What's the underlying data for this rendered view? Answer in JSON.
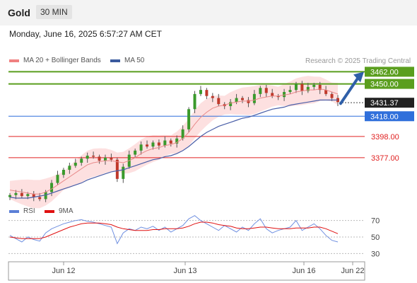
{
  "header": {
    "title": "Gold",
    "timeframe": "30 MIN"
  },
  "datetime": "Monday, June 16, 2025 6:57:27 AM CET",
  "legend": {
    "bollinger": {
      "label": "MA 20 + Bollinger Bands",
      "color": "#f08080"
    },
    "ma50": {
      "label": "MA 50",
      "color": "#3a5a9e"
    },
    "credit": "Research © 2025 Trading Central"
  },
  "rsi_legend": {
    "rsi": {
      "label": "RSI",
      "color": "#5b7fd6"
    },
    "ma9": {
      "label": "9MA",
      "color": "#e01010"
    }
  },
  "chart_data": [
    {
      "type": "line",
      "title": "",
      "x_ticks": [
        "Jun 12",
        "Jun 13",
        "Jun 16",
        "Jun 22"
      ],
      "y_range": [
        3330,
        3470
      ],
      "series": [
        {
          "name": "Gold",
          "values": [
            3340,
            3342,
            3339,
            3341,
            3338,
            3336,
            3343,
            3352,
            3360,
            3365,
            3369,
            3372,
            3376,
            3379,
            3378,
            3374,
            3377,
            3375,
            3356,
            3368,
            3380,
            3384,
            3390,
            3388,
            3392,
            3389,
            3394,
            3391,
            3396,
            3405,
            3425,
            3440,
            3444,
            3438,
            3436,
            3430,
            3428,
            3432,
            3436,
            3434,
            3431,
            3440,
            3446,
            3441,
            3438,
            3437,
            3442,
            3444,
            3450,
            3443,
            3447,
            3449,
            3444,
            3440,
            3436,
            3432
          ]
        },
        {
          "name": "MA 20",
          "values": [
            3345,
            3344,
            3343,
            3342,
            3341,
            3341,
            3343,
            3346,
            3350,
            3354,
            3358,
            3362,
            3366,
            3370,
            3372,
            3373,
            3374,
            3374,
            3373,
            3372,
            3374,
            3377,
            3381,
            3384,
            3386,
            3387,
            3389,
            3390,
            3392,
            3396,
            3402,
            3410,
            3417,
            3422,
            3426,
            3428,
            3429,
            3431,
            3432,
            3433,
            3433,
            3434,
            3436,
            3437,
            3438,
            3438,
            3439,
            3440,
            3442,
            3443,
            3444,
            3444,
            3445,
            3444,
            3442,
            3440
          ]
        },
        {
          "name": "MA 50",
          "values": [
            3338,
            3337,
            3337,
            3337,
            3338,
            3339,
            3340,
            3342,
            3344,
            3346,
            3348,
            3350,
            3352,
            3355,
            3357,
            3359,
            3361,
            3363,
            3364,
            3365,
            3367,
            3369,
            3371,
            3373,
            3375,
            3376,
            3378,
            3379,
            3381,
            3384,
            3388,
            3393,
            3398,
            3402,
            3405,
            3408,
            3410,
            3412,
            3414,
            3416,
            3417,
            3419,
            3421,
            3423,
            3425,
            3426,
            3427,
            3429,
            3430,
            3431,
            3432,
            3433,
            3434,
            3434,
            3434,
            3434
          ]
        }
      ],
      "levels": [
        {
          "value": "3462.00",
          "style": "target",
          "color": "#5a9e1e"
        },
        {
          "value": "3450.00",
          "style": "target",
          "color": "#5a9e1e"
        },
        {
          "value": "3431.37",
          "style": "last",
          "color": "#222222"
        },
        {
          "value": "3418.00",
          "style": "pivot",
          "color": "#2f6fdb"
        },
        {
          "value": "3398.00",
          "style": "support",
          "color": "#e02020"
        },
        {
          "value": "3377.00",
          "style": "support",
          "color": "#e02020"
        }
      ]
    },
    {
      "type": "line",
      "title": "",
      "y_ticks": [
        "70",
        "50",
        "30"
      ],
      "y_range": [
        20,
        80
      ],
      "series": [
        {
          "name": "RSI",
          "values": [
            52,
            48,
            44,
            50,
            47,
            45,
            55,
            60,
            63,
            66,
            68,
            70,
            71,
            69,
            68,
            66,
            64,
            62,
            42,
            55,
            60,
            58,
            62,
            60,
            63,
            58,
            62,
            56,
            60,
            64,
            72,
            76,
            70,
            66,
            62,
            58,
            64,
            60,
            56,
            62,
            58,
            66,
            72,
            60,
            55,
            58,
            60,
            62,
            70,
            58,
            62,
            66,
            60,
            52,
            46,
            44
          ]
        },
        {
          "name": "9MA",
          "values": [
            50,
            49,
            48,
            48,
            48,
            48,
            50,
            53,
            56,
            59,
            62,
            64,
            66,
            67,
            67,
            67,
            66,
            65,
            62,
            60,
            59,
            58,
            58,
            58,
            59,
            59,
            60,
            60,
            60,
            61,
            63,
            66,
            68,
            68,
            67,
            65,
            64,
            63,
            61,
            60,
            60,
            61,
            62,
            62,
            61,
            60,
            60,
            60,
            61,
            61,
            61,
            62,
            62,
            60,
            57,
            54
          ]
        }
      ]
    }
  ]
}
